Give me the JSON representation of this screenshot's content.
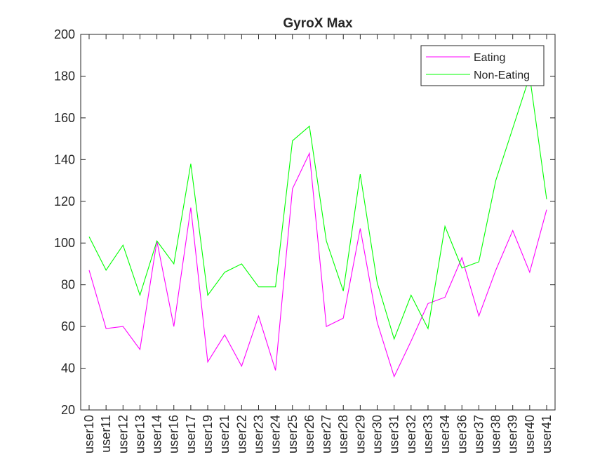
{
  "chart_data": {
    "type": "line",
    "title": "GyroX Max",
    "xlabel": "",
    "ylabel": "",
    "categories": [
      "user10",
      "user11",
      "user12",
      "user13",
      "user14",
      "user16",
      "user17",
      "user19",
      "user21",
      "user22",
      "user23",
      "user24",
      "user25",
      "user26",
      "user27",
      "user28",
      "user29",
      "user30",
      "user31",
      "user32",
      "user33",
      "user34",
      "user36",
      "user37",
      "user38",
      "user39",
      "user40",
      "user41"
    ],
    "ylim": [
      20,
      200
    ],
    "yticks": [
      "20",
      "40",
      "60",
      "80",
      "100",
      "120",
      "140",
      "160",
      "180",
      "200"
    ],
    "grid": false,
    "legend_position": "top-right",
    "series": [
      {
        "name": "Eating",
        "color": "#ff00ff",
        "values": [
          87,
          59,
          60,
          49,
          101,
          60,
          117,
          43,
          56,
          41,
          65,
          39,
          126,
          143,
          60,
          64,
          107,
          62,
          36,
          53,
          71,
          74,
          93,
          65,
          87,
          106,
          86,
          116
        ]
      },
      {
        "name": "Non-Eating",
        "color": "#00ff00",
        "values": [
          103,
          87,
          99,
          75,
          101,
          90,
          138,
          75,
          86,
          90,
          79,
          79,
          149,
          156,
          101,
          77,
          133,
          81,
          54,
          75,
          59,
          108,
          88,
          91,
          130,
          155,
          180,
          121
        ]
      }
    ]
  }
}
